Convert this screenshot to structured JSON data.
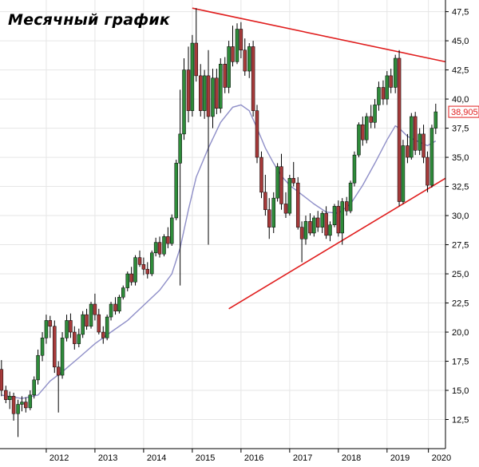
{
  "chart_data": {
    "type": "candlestick",
    "title": "Месячный график",
    "xlabel": "",
    "ylabel": "",
    "ylim": [
      10.0,
      48.5
    ],
    "y_ticks": [
      "12,5",
      "15,0",
      "17,5",
      "20,0",
      "22,5",
      "25,0",
      "27,5",
      "30,0",
      "32,5",
      "35,0",
      "37,5",
      "40,0",
      "42,5",
      "45,0",
      "47,5"
    ],
    "y_tick_values": [
      12.5,
      15,
      17.5,
      20,
      22.5,
      25,
      27.5,
      30,
      32.5,
      35,
      37.5,
      40,
      42.5,
      45,
      47.5
    ],
    "x_ticks": [
      "2012",
      "2013",
      "2014",
      "2015",
      "2016",
      "2017",
      "2018",
      "2019",
      "2020"
    ],
    "x_tick_values": [
      2012.0,
      2013.0,
      2014.0,
      2015.0,
      2016.0,
      2017.0,
      2018.0,
      2019.0,
      2019.85
    ],
    "x_range": [
      2011.05,
      2020.2
    ],
    "last_price_label": "38,905",
    "last_price": 38.905,
    "grid": true,
    "colors": {
      "up": "#2e8b3a",
      "down": "#a63a3a",
      "wick": "#000000",
      "moving_average": "#8f8fc8",
      "trendline": "#e01e1e",
      "grid": "#e6e6e6",
      "price_badge": "#e01e1e"
    },
    "series": [
      {
        "name": "",
        "kind": "ohlc",
        "values": [
          [
            2011.08,
            16.8,
            17.6,
            14.5,
            15.0
          ],
          [
            2011.17,
            15.0,
            15.4,
            13.9,
            14.2
          ],
          [
            2011.25,
            14.2,
            14.9,
            13.4,
            14.5
          ],
          [
            2011.33,
            14.5,
            14.8,
            12.4,
            13.0
          ],
          [
            2011.42,
            13.0,
            14.2,
            11.0,
            13.8
          ],
          [
            2011.5,
            13.8,
            14.5,
            13.2,
            14.0
          ],
          [
            2011.58,
            14.0,
            14.4,
            13.1,
            13.5
          ],
          [
            2011.67,
            13.5,
            15.0,
            13.3,
            14.6
          ],
          [
            2011.75,
            14.6,
            16.2,
            14.3,
            15.9
          ],
          [
            2011.83,
            15.9,
            18.5,
            15.5,
            18.0
          ],
          [
            2011.92,
            18.0,
            20.0,
            17.5,
            19.5
          ],
          [
            2012.0,
            19.5,
            21.5,
            19.0,
            21.0
          ],
          [
            2012.08,
            21.0,
            21.4,
            19.5,
            20.5
          ],
          [
            2012.17,
            20.5,
            21.0,
            16.5,
            17.0
          ],
          [
            2012.25,
            17.0,
            17.5,
            13.1,
            16.3
          ],
          [
            2012.33,
            16.3,
            20.0,
            16.0,
            19.5
          ],
          [
            2012.42,
            19.5,
            21.5,
            19.2,
            21.0
          ],
          [
            2012.5,
            21.0,
            21.6,
            19.5,
            20.0
          ],
          [
            2012.58,
            20.0,
            20.5,
            18.5,
            19.0
          ],
          [
            2012.67,
            19.0,
            20.3,
            18.7,
            19.8
          ],
          [
            2012.75,
            19.8,
            21.8,
            19.5,
            21.5
          ],
          [
            2012.83,
            21.5,
            22.0,
            20.2,
            20.5
          ],
          [
            2012.92,
            20.5,
            22.6,
            20.3,
            22.4
          ],
          [
            2013.0,
            22.4,
            23.3,
            21.0,
            21.5
          ],
          [
            2013.08,
            21.5,
            22.0,
            19.8,
            20.0
          ],
          [
            2013.17,
            20.0,
            20.5,
            19.0,
            19.5
          ],
          [
            2013.25,
            19.5,
            21.5,
            19.3,
            21.3
          ],
          [
            2013.33,
            21.3,
            22.6,
            21.0,
            22.4
          ],
          [
            2013.42,
            22.4,
            23.0,
            21.5,
            21.8
          ],
          [
            2013.5,
            21.8,
            23.2,
            21.6,
            23.0
          ],
          [
            2013.58,
            23.0,
            24.0,
            22.8,
            23.8
          ],
          [
            2013.67,
            23.8,
            25.2,
            23.5,
            25.0
          ],
          [
            2013.75,
            25.0,
            25.6,
            24.0,
            24.3
          ],
          [
            2013.83,
            24.3,
            26.6,
            24.0,
            26.4
          ],
          [
            2013.92,
            26.4,
            27.0,
            25.6,
            25.8
          ],
          [
            2014.0,
            25.8,
            26.4,
            24.9,
            25.4
          ],
          [
            2014.08,
            25.4,
            26.0,
            24.6,
            25.0
          ],
          [
            2014.17,
            25.0,
            27.0,
            24.8,
            26.8
          ],
          [
            2014.25,
            26.8,
            28.1,
            26.5,
            27.7
          ],
          [
            2014.33,
            27.7,
            28.2,
            26.4,
            26.7
          ],
          [
            2014.42,
            26.7,
            28.4,
            26.5,
            28.2
          ],
          [
            2014.5,
            28.2,
            29.0,
            27.2,
            27.6
          ],
          [
            2014.58,
            27.6,
            30.1,
            27.4,
            29.8
          ],
          [
            2014.67,
            29.8,
            34.8,
            29.6,
            34.5
          ],
          [
            2014.75,
            34.5,
            40.8,
            24.0,
            37.0
          ],
          [
            2014.83,
            37.0,
            43.5,
            36.5,
            42.5
          ],
          [
            2014.92,
            42.5,
            44.5,
            38.0,
            39.0
          ],
          [
            2015.0,
            39.0,
            45.5,
            38.5,
            44.8
          ],
          [
            2015.08,
            44.8,
            47.8,
            41.5,
            42.0
          ],
          [
            2015.17,
            42.0,
            43.0,
            38.5,
            39.0
          ],
          [
            2015.25,
            39.0,
            42.5,
            38.3,
            42.0
          ],
          [
            2015.33,
            42.0,
            44.2,
            27.5,
            38.5
          ],
          [
            2015.42,
            38.5,
            42.6,
            37.5,
            41.8
          ],
          [
            2015.5,
            41.8,
            42.6,
            38.7,
            39.2
          ],
          [
            2015.58,
            39.2,
            43.5,
            38.8,
            43.0
          ],
          [
            2015.67,
            43.0,
            43.6,
            40.5,
            41.0
          ],
          [
            2015.75,
            41.0,
            45.0,
            40.5,
            44.5
          ],
          [
            2015.83,
            44.5,
            46.3,
            42.8,
            43.2
          ],
          [
            2015.92,
            43.2,
            46.5,
            43.0,
            46.0
          ],
          [
            2016.0,
            46.0,
            46.6,
            43.5,
            44.2
          ],
          [
            2016.08,
            44.2,
            45.2,
            42.0,
            42.4
          ],
          [
            2016.17,
            42.4,
            44.8,
            41.8,
            44.5
          ],
          [
            2016.25,
            44.5,
            45.0,
            38.5,
            39.0
          ],
          [
            2016.33,
            39.0,
            39.5,
            34.5,
            35.0
          ],
          [
            2016.42,
            35.0,
            35.5,
            31.5,
            32.0
          ],
          [
            2016.5,
            32.0,
            33.5,
            30.0,
            30.5
          ],
          [
            2016.58,
            30.5,
            31.5,
            28.0,
            29.0
          ],
          [
            2016.67,
            29.0,
            32.0,
            28.5,
            31.5
          ],
          [
            2016.75,
            31.5,
            34.5,
            31.2,
            34.2
          ],
          [
            2016.83,
            34.2,
            35.3,
            30.5,
            31.0
          ],
          [
            2016.92,
            31.0,
            32.0,
            29.8,
            30.2
          ],
          [
            2017.0,
            30.2,
            33.5,
            30.0,
            33.2
          ],
          [
            2017.08,
            33.2,
            34.6,
            32.5,
            32.8
          ],
          [
            2017.17,
            32.8,
            33.3,
            28.8,
            29.0
          ],
          [
            2017.25,
            29.0,
            29.5,
            26.0,
            28.0
          ],
          [
            2017.33,
            28.0,
            30.0,
            27.5,
            29.5
          ],
          [
            2017.42,
            29.5,
            30.2,
            28.3,
            28.5
          ],
          [
            2017.5,
            28.5,
            30.0,
            28.2,
            29.8
          ],
          [
            2017.58,
            29.8,
            30.4,
            28.6,
            29.0
          ],
          [
            2017.67,
            29.0,
            30.4,
            28.5,
            30.2
          ],
          [
            2017.75,
            30.2,
            30.8,
            28.0,
            28.3
          ],
          [
            2017.83,
            28.3,
            29.5,
            27.8,
            29.2
          ],
          [
            2017.92,
            29.2,
            31.0,
            29.0,
            30.8
          ],
          [
            2018.0,
            30.8,
            31.3,
            28.2,
            28.5
          ],
          [
            2018.08,
            28.5,
            31.5,
            27.5,
            31.2
          ],
          [
            2018.17,
            31.2,
            31.6,
            30.0,
            30.4
          ],
          [
            2018.25,
            30.4,
            33.0,
            30.2,
            32.8
          ],
          [
            2018.33,
            32.8,
            35.5,
            32.5,
            35.2
          ],
          [
            2018.42,
            35.2,
            38.0,
            35.0,
            37.8
          ],
          [
            2018.5,
            37.8,
            38.5,
            36.0,
            36.5
          ],
          [
            2018.58,
            36.5,
            38.8,
            36.2,
            38.5
          ],
          [
            2018.67,
            38.5,
            39.5,
            37.5,
            38.0
          ],
          [
            2018.75,
            38.0,
            40.0,
            37.5,
            39.5
          ],
          [
            2018.83,
            39.5,
            41.5,
            39.0,
            41.0
          ],
          [
            2018.92,
            41.0,
            41.6,
            39.5,
            40.0
          ],
          [
            2019.0,
            40.0,
            42.4,
            39.5,
            42.0
          ],
          [
            2019.08,
            42.0,
            42.6,
            40.5,
            41.0
          ],
          [
            2019.17,
            41.0,
            43.8,
            40.5,
            43.5
          ],
          [
            2019.25,
            43.5,
            44.2,
            30.8,
            31.2
          ],
          [
            2019.33,
            31.2,
            36.5,
            31.0,
            36.0
          ],
          [
            2019.42,
            36.0,
            37.0,
            34.5,
            35.0
          ],
          [
            2019.5,
            35.0,
            38.8,
            34.8,
            38.5
          ],
          [
            2019.58,
            38.5,
            38.9,
            35.2,
            35.6
          ],
          [
            2019.67,
            35.6,
            37.5,
            35.2,
            37.0
          ],
          [
            2019.75,
            37.0,
            37.8,
            34.5,
            35.0
          ],
          [
            2019.83,
            35.0,
            35.5,
            32.0,
            32.6
          ],
          [
            2019.92,
            32.6,
            37.8,
            32.4,
            37.5
          ],
          [
            2020.0,
            37.5,
            39.6,
            37.0,
            38.905
          ]
        ]
      },
      {
        "name": "",
        "kind": "moving_average",
        "points": [
          [
            2011.08,
            14.6
          ],
          [
            2011.5,
            14.3
          ],
          [
            2011.83,
            14.6
          ],
          [
            2012.08,
            15.8
          ],
          [
            2012.33,
            16.6
          ],
          [
            2012.67,
            17.8
          ],
          [
            2013.0,
            19.0
          ],
          [
            2013.33,
            20.0
          ],
          [
            2013.67,
            21.0
          ],
          [
            2014.0,
            22.3
          ],
          [
            2014.33,
            23.6
          ],
          [
            2014.58,
            25.0
          ],
          [
            2014.75,
            27.2
          ],
          [
            2014.92,
            30.5
          ],
          [
            2015.08,
            33.3
          ],
          [
            2015.33,
            35.8
          ],
          [
            2015.58,
            38.0
          ],
          [
            2015.83,
            39.3
          ],
          [
            2016.0,
            39.5
          ],
          [
            2016.17,
            39.0
          ],
          [
            2016.33,
            37.5
          ],
          [
            2016.5,
            35.8
          ],
          [
            2016.67,
            34.5
          ],
          [
            2016.83,
            33.4
          ],
          [
            2017.0,
            32.6
          ],
          [
            2017.25,
            31.8
          ],
          [
            2017.5,
            31.0
          ],
          [
            2017.75,
            30.3
          ],
          [
            2018.0,
            30.2
          ],
          [
            2018.25,
            31.0
          ],
          [
            2018.5,
            32.6
          ],
          [
            2018.75,
            34.5
          ],
          [
            2019.0,
            36.5
          ],
          [
            2019.17,
            37.7
          ],
          [
            2019.25,
            37.5
          ],
          [
            2019.42,
            36.8
          ],
          [
            2019.67,
            36.3
          ],
          [
            2019.83,
            36.0
          ],
          [
            2020.0,
            36.4
          ]
        ]
      },
      {
        "name": "",
        "kind": "trendline",
        "points": [
          [
            2015.0,
            47.8
          ],
          [
            2020.2,
            43.2
          ]
        ]
      },
      {
        "name": "",
        "kind": "trendline",
        "points": [
          [
            2015.75,
            22.0
          ],
          [
            2020.2,
            33.2
          ]
        ]
      }
    ]
  }
}
